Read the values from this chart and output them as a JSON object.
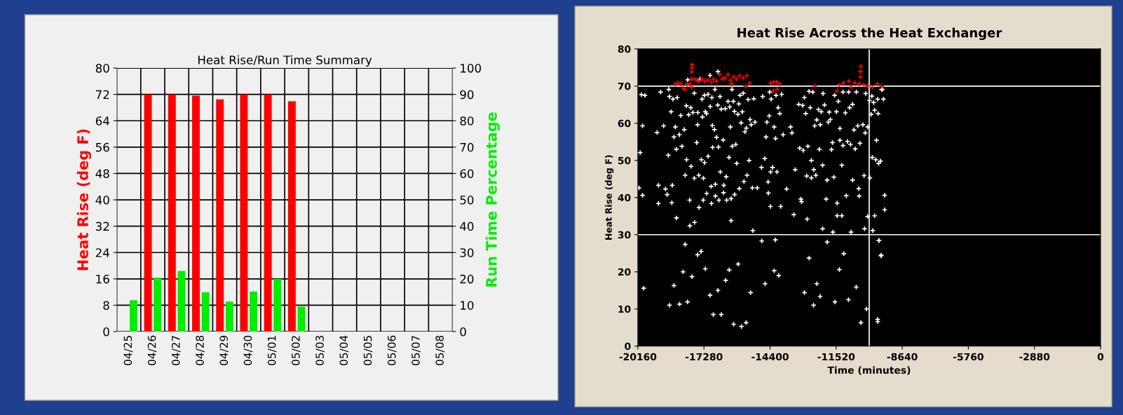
{
  "chart_data": [
    {
      "type": "bar",
      "title": "Heat Rise/Run Time Summary",
      "ylabel": "Heat Rise (deg F)",
      "y2label": "Run Time Percentage",
      "categories": [
        "04/25",
        "04/26",
        "04/27",
        "04/28",
        "04/29",
        "04/30",
        "05/01",
        "05/02",
        "05/03",
        "05/04",
        "05/05",
        "05/06",
        "05/07",
        "05/08"
      ],
      "series": [
        {
          "color": "#ff0000",
          "values": [
            null,
            72,
            72,
            71.6,
            70.5,
            72,
            72,
            69.9,
            null,
            null,
            null,
            null,
            null,
            null
          ]
        },
        {
          "color": "#00ee00",
          "axis": "y2",
          "values": [
            11.9,
            20.5,
            23.0,
            14.9,
            11.4,
            15.2,
            20.0,
            9.5,
            null,
            null,
            null,
            null,
            null,
            null
          ]
        }
      ],
      "ylim": [
        0,
        80
      ],
      "yticks": [
        0,
        8,
        16,
        24,
        32,
        40,
        48,
        56,
        64,
        72,
        80
      ],
      "y2lim": [
        0,
        100
      ],
      "y2ticks": [
        0,
        10,
        20,
        30,
        40,
        50,
        60,
        70,
        80,
        90,
        100
      ],
      "grid": true,
      "legend": false
    },
    {
      "type": "scatter",
      "title": "Heat Rise Across the Heat Exchanger",
      "xlabel": "Time (minutes)",
      "ylabel": "Heat Rise (deg F)",
      "xlim": [
        -20160,
        0
      ],
      "xticks": [
        -20160,
        -17280,
        -14400,
        -11520,
        -8640,
        -5760,
        -2880,
        0
      ],
      "ylim": [
        0,
        80
      ],
      "yticks": [
        0,
        10,
        20,
        30,
        40,
        50,
        60,
        70,
        80
      ],
      "marker": "cross",
      "grid": false,
      "legend": false,
      "ref_lines": [
        {
          "axis": "y",
          "value": 70,
          "color": "#ffffff"
        },
        {
          "axis": "y",
          "value": 30,
          "color": "#ffffff"
        },
        {
          "axis": "x",
          "value": -10080,
          "color": "#ffffff"
        }
      ],
      "series": [
        {
          "color": "#ffffff",
          "x": [
            -20058,
            -20007,
            -19854,
            -19956,
            -20109,
            -19956,
            -19323,
            -19262,
            -19262,
            -19170,
            -19037,
            -18956,
            -18884,
            -18833,
            -18813,
            -18782,
            -18711,
            -18660,
            -18680,
            -18629,
            -18588,
            -18527,
            -18486,
            -18476,
            -18445,
            -18353,
            -18292,
            -18241,
            -18139,
            -18098,
            -18047,
            -18037,
            -17986,
            -17945,
            -17904,
            -17894,
            -17853,
            -17843,
            -17761,
            -17700,
            -17700,
            -17690,
            -17598,
            -17557,
            -17547,
            -17506,
            -17496,
            -17455,
            -17394,
            -17363,
            -17343,
            -17312,
            -17302,
            -17261,
            -17251,
            -17220,
            -17169,
            -17159,
            -17098,
            -17098,
            -17016,
            -17006,
            -16965,
            -16955,
            -16935,
            -16914,
            -16904,
            -16822,
            -16802,
            -16782,
            -16782,
            -16731,
            -16680,
            -16670,
            -16649,
            -16629,
            -16578,
            -16568,
            -16527,
            -16445,
            -16425,
            -16415,
            -16353,
            -16312,
            -16292,
            -16231,
            -16190,
            -16159,
            -16129,
            -16098,
            -16098,
            -16057,
            -16047,
            -15996,
            -15955,
            -15945,
            -15894,
            -15853,
            -15802,
            -15761,
            -15741,
            -15710,
            -15660,
            -15608,
            -15568,
            -15537,
            -15496,
            -15435,
            -15404,
            -15313,
            -15354,
            -15272,
            -15221,
            -15170,
            -15150,
            -15109,
            -15058,
            -14956,
            -14772,
            -14721,
            -14629,
            -14578,
            -14537,
            -14486,
            -14476,
            -14435,
            -14415,
            -14384,
            -14374,
            -14354,
            -14293,
            -14221,
            -14160,
            -14139,
            -14099,
            -14048,
            -13976,
            -13935,
            -13894,
            -13830,
            -13677,
            -13507,
            -13446,
            -13364,
            -13303,
            -13150,
            -13109,
            -13058,
            -13027,
            -12976,
            -12956,
            -12905,
            -12844,
            -12803,
            -12783,
            -12752,
            -12701,
            -12650,
            -12599,
            -12599,
            -12538,
            -12497,
            -12456,
            -12405,
            -12364,
            -12293,
            -12252,
            -12211,
            -12170,
            -12109,
            -12089,
            -12109,
            -12027,
            -11956,
            -11915,
            -11864,
            -11823,
            -11772,
            -11721,
            -11680,
            -11660,
            -11619,
            -11588,
            -11507,
            -11476,
            -11476,
            -11425,
            -11354,
            -11354,
            -11272,
            -11272,
            -11221,
            -11221,
            -11119,
            -11078,
            -11027,
            -10976,
            -10935,
            -10894,
            -10874,
            -10803,
            -10803,
            -10742,
            -10691,
            -10640,
            -10578,
            -10537,
            -10517,
            -10486,
            -10354,
            -10303,
            -10282,
            -10252,
            -10231,
            -10149,
            -10149,
            -10068,
            -10048,
            -9997,
            -9966,
            -9946,
            -9925,
            -9885,
            -9844,
            -9844,
            -9793,
            -9762,
            -9711,
            -9691,
            -9670,
            -9589,
            -9538,
            -9406,
            -9406,
            -9457,
            -9508,
            -9559,
            -9660,
            -9713,
            -19905,
            -18782,
            -18588,
            -18343,
            -18190,
            -18098,
            -17996,
            -17802,
            -17557,
            -17404,
            -17220,
            -17016,
            -16873,
            -16670,
            -16527,
            -16333,
            -16179,
            -15986,
            -15790,
            -15647,
            -15443,
            -15249,
            -14759,
            -14616,
            -14218,
            -14167,
            -14024,
            -12901,
            -12697,
            -12503,
            -12360,
            -12217,
            -11911,
            -11573,
            -11380,
            -11186,
            -10982,
            -10645,
            -10441,
            -10196,
            -9705,
            -9563,
            -9654
          ],
          "values": [
            52.1,
            67.7,
            67.5,
            59.3,
            42.6,
            40.6,
            57.5,
            43.3,
            38.4,
            68.4,
            59.3,
            42.3,
            40.8,
            51.4,
            69.1,
            67.2,
            63.1,
            43.3,
            38.6,
            66.5,
            56.3,
            59.0,
            53.0,
            34.5,
            66.9,
            56.9,
            62.1,
            53.8,
            58.3,
            46.0,
            64.7,
            50.2,
            71.7,
            62.3,
            39.3,
            32.4,
            64.2,
            48.4,
            62.9,
            68.1,
            45.2,
            33.3,
            54.8,
            59.6,
            62.9,
            46.0,
            37.3,
            71.9,
            50.2,
            66.5,
            61.7,
            39.3,
            45.2,
            67.5,
            49.4,
            63.1,
            62.6,
            41.1,
            67.8,
            51.1,
            72.9,
            64.5,
            43.0,
            38.4,
            66.9,
            59.4,
            53.5,
            58.3,
            69.1,
            40.4,
            43.6,
            56.2,
            64.9,
            73.9,
            53.6,
            39.3,
            67.2,
            46.9,
            63.8,
            55.5,
            41.3,
            43.3,
            63.9,
            45.6,
            39.3,
            65.9,
            50.8,
            64.4,
            59.0,
            39.7,
            33.8,
            69.1,
            53.8,
            65.9,
            63.2,
            40.8,
            54.3,
            49.2,
            62.4,
            65.2,
            42.4,
            67.5,
            60.1,
            63.1,
            68.1,
            44.3,
            57.7,
            58.7,
            46.0,
            50.0,
            66.4,
            61.0,
            59.6,
            42.6,
            31.1,
            66.6,
            60.3,
            42.6,
            48.1,
            67.2,
            50.5,
            56.3,
            60.3,
            44.2,
            41.2,
            62.0,
            68.4,
            37.6,
            46.9,
            66.5,
            48.1,
            59.0,
            55.9,
            67.5,
            46.9,
            64.2,
            62.6,
            37.6,
            67.8,
            56.9,
            42.3,
            59.0,
            57.4,
            35.4,
            47.5,
            65.1,
            53.3,
            39.6,
            38.9,
            64.8,
            52.7,
            66.9,
            62.6,
            45.8,
            34.2,
            53.8,
            68.6,
            64.2,
            50.0,
            45.3,
            68.4,
            47.5,
            59.3,
            46.0,
            60.9,
            63.7,
            53.0,
            59.6,
            63.1,
            48.7,
            68.0,
            31.6,
            64.9,
            39.6,
            44.7,
            60.3,
            63.0,
            61.0,
            52.9,
            54.8,
            30.7,
            45.5,
            67.5,
            63.1,
            38.5,
            35.1,
            65.9,
            58.6,
            55.4,
            35.1,
            48.7,
            68.4,
            54.0,
            62.8,
            40.5,
            55.1,
            68.4,
            64.2,
            54.3,
            30.7,
            65.1,
            44.7,
            58.2,
            53.1,
            68.4,
            59.3,
            42.4,
            40.4,
            54.6,
            59.6,
            45.9,
            31.6,
            57.4,
            68.0,
            59.0,
            34.9,
            66.1,
            45.3,
            62.4,
            67.3,
            50.8,
            31.1,
            65.6,
            63.5,
            35.1,
            50.2,
            55.4,
            66.5,
            62.6,
            49.2,
            49.8,
            69.1,
            40.6,
            36.7,
            66.5,
            69.1,
            24.5,
            28.5,
            7.2,
            15.6,
            11.0,
            16.3,
            11.3,
            20.0,
            27.4,
            11.9,
            18.7,
            24.6,
            25.5,
            20.8,
            13.7,
            8.5,
            15.0,
            8.5,
            17.7,
            20.5,
            5.9,
            22.1,
            5.3,
            6.3,
            14.4,
            28.3,
            16.8,
            20.3,
            28.6,
            19.0,
            14.4,
            23.7,
            11.0,
            16.8,
            13.4,
            28.0,
            11.9,
            20.6,
            24.9,
            12.5,
            15.9,
            6.3,
            10.0,
            6.6,
            24.3,
            28.4
          ]
        },
        {
          "color": "#ff0000",
          "x": [
            -18527,
            -18404,
            -18272,
            -18170,
            -18098,
            -18016,
            -17894,
            -17833,
            -17812,
            -17802,
            -17792,
            -17812,
            -17710,
            -17608,
            -17506,
            -17353,
            -17251,
            -17098,
            -16945,
            -16873,
            -16741,
            -16588,
            -16486,
            -16363,
            -16231,
            -16129,
            -16078,
            -15976,
            -15853,
            -15721,
            -15568,
            -15466,
            -15415,
            -15283,
            -14371,
            -14238,
            -14115,
            -13983,
            -14262,
            -14089,
            -12452,
            -11481,
            -11380,
            -11196,
            -10972,
            -10869,
            -10717,
            -10513,
            -10462,
            -10462,
            -10441,
            -10313,
            -10149,
            -9946,
            -9721,
            -9538
          ],
          "values": [
            70.5,
            70.8,
            70.6,
            69.4,
            69.1,
            70.5,
            70.6,
            71.9,
            73.8,
            74.9,
            75.8,
            69.7,
            71.9,
            71.6,
            71.3,
            71.9,
            71.3,
            71.6,
            71.0,
            71.9,
            71.3,
            73.1,
            71.9,
            72.2,
            73.1,
            71.6,
            70.6,
            72.5,
            71.9,
            72.8,
            72.2,
            70.0,
            72.8,
            70.8,
            70.8,
            71.1,
            71.1,
            70.6,
            68.7,
            69.1,
            70.1,
            68.7,
            70.3,
            70.8,
            71.3,
            69.7,
            70.9,
            70.6,
            72.5,
            73.9,
            75.3,
            70.3,
            70.0,
            69.7,
            70.6,
            70.0
          ]
        }
      ]
    }
  ]
}
